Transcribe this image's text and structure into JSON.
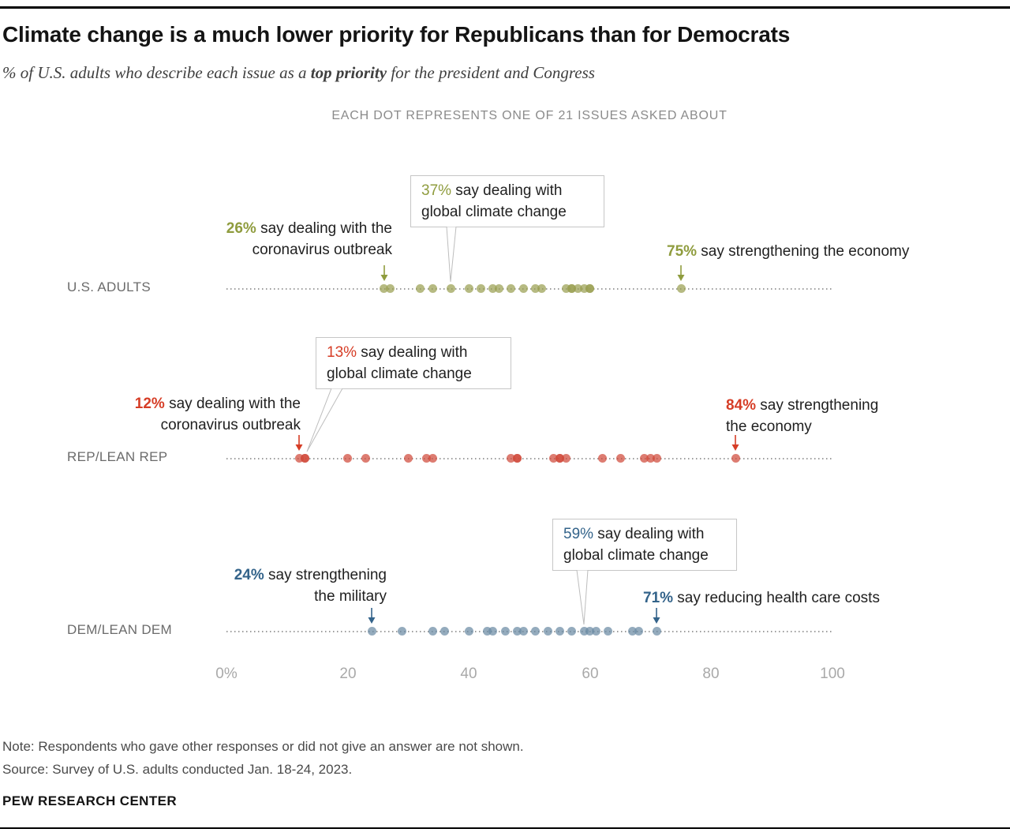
{
  "header": {
    "title": "Climate change is a much lower priority for Republicans than for Democrats",
    "subtitle_prefix": "% of U.S. adults who describe each issue as a ",
    "subtitle_bold": "top priority",
    "subtitle_suffix": " for the president and Congress",
    "legend_note": "EACH DOT REPRESENTS ONE OF 21 ISSUES ASKED ABOUT"
  },
  "colors": {
    "green": "#8f9c3e",
    "red": "#d63d26",
    "blue": "#33638a",
    "line": "#9c9c9c",
    "axis_text": "#a9a9a9"
  },
  "chart_data": {
    "type": "scatter",
    "subtype": "dot-strip-plot",
    "axis": {
      "min": 0,
      "max": 100,
      "ticks": [
        "0%",
        "20",
        "40",
        "60",
        "80",
        "100"
      ]
    },
    "rows": [
      {
        "label": "U.S. ADULTS",
        "dot_color": "#9aa052",
        "values": [
          26,
          27,
          32,
          34,
          37,
          40,
          42,
          44,
          45,
          47,
          49,
          51,
          52,
          56,
          57,
          57,
          58,
          59,
          60,
          60,
          75
        ],
        "annotations": [
          {
            "pct": "26%",
            "text": " say dealing with the coronavirus outbreak",
            "value": 26
          },
          {
            "pct": "37%",
            "text": " say dealing with global climate change",
            "value": 37
          },
          {
            "pct": "75%",
            "text": " say strengthening the economy",
            "value": 75
          }
        ]
      },
      {
        "label": "REP/LEAN REP",
        "dot_color": "#d0493a",
        "values": [
          12,
          13,
          13,
          20,
          23,
          30,
          33,
          34,
          47,
          48,
          48,
          54,
          55,
          55,
          56,
          62,
          65,
          69,
          70,
          71,
          84
        ],
        "annotations": [
          {
            "pct": "13%",
            "text": " say dealing with global climate change",
            "value": 13
          },
          {
            "pct": "12%",
            "text": " say dealing with the coronavirus outbreak",
            "value": 12
          },
          {
            "pct": "84%",
            "text": " say strengthening the economy",
            "value": 84
          }
        ]
      },
      {
        "label": "DEM/LEAN DEM",
        "dot_color": "#6b8ba4",
        "values": [
          24,
          29,
          34,
          36,
          40,
          43,
          44,
          46,
          48,
          49,
          51,
          53,
          55,
          57,
          59,
          60,
          61,
          63,
          67,
          68,
          71
        ],
        "annotations": [
          {
            "pct": "59%",
            "text": " say dealing with global climate change",
            "value": 59
          },
          {
            "pct": "24%",
            "text": " say strengthening the military",
            "value": 24
          },
          {
            "pct": "71%",
            "text": " say reducing health care costs",
            "value": 71
          }
        ]
      }
    ]
  },
  "footer": {
    "note": "Note: Respondents who gave other responses or did not give an answer are not shown.",
    "source": "Source: Survey of U.S. adults conducted Jan. 18-24, 2023.",
    "brand": "PEW RESEARCH CENTER"
  }
}
